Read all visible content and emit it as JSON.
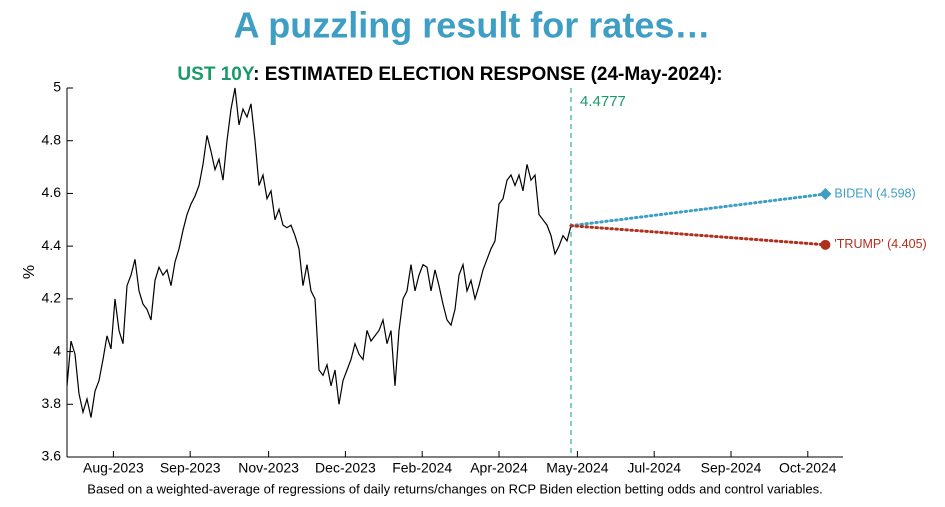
{
  "chart_data": {
    "type": "line",
    "title": "A puzzling result for rates…",
    "subtitle": [
      {
        "text": "UST 10Y",
        "color": "#1a9a6a"
      },
      {
        "text": ": ESTIMATED ELECTION RESPONSE (24-May-2024):",
        "color": "#000000"
      }
    ],
    "ylabel": "%",
    "footnote": "Based on a weighted-average of regressions of daily returns/changes on RCP Biden election betting odds and control variables.",
    "xlim": [
      0,
      485
    ],
    "xticks": [
      {
        "value": 29,
        "label": "Aug-2023"
      },
      {
        "value": 77,
        "label": "Sep-2023"
      },
      {
        "value": 126,
        "label": "Nov-2023"
      },
      {
        "value": 174,
        "label": "Dec-2023"
      },
      {
        "value": 222,
        "label": "Feb-2024"
      },
      {
        "value": 270,
        "label": "Apr-2024"
      },
      {
        "value": 319,
        "label": "May-2024"
      },
      {
        "value": 367,
        "label": "Jul-2024"
      },
      {
        "value": 415,
        "label": "Sep-2024"
      },
      {
        "value": 463,
        "label": "Oct-2024"
      }
    ],
    "ylim": [
      3.6,
      5
    ],
    "yticks": [
      3.6,
      3.8,
      4,
      4.2,
      4.4,
      4.6,
      4.8,
      5
    ],
    "vline": {
      "x": 315,
      "label": "4.4777",
      "color": "#5bbfb0",
      "label_color": "#1a9a6a"
    },
    "series": [
      {
        "color": "#000000",
        "style": "solid",
        "x": [
          0,
          2.5,
          5,
          7.5,
          10,
          12.5,
          15,
          17.5,
          20,
          22.5,
          25,
          27.5,
          30,
          32.5,
          35,
          37.5,
          40,
          42.5,
          45,
          47.5,
          50,
          52.5,
          55,
          57.5,
          60,
          62.5,
          65,
          67.5,
          70,
          72.5,
          75,
          77.5,
          80,
          82.5,
          85,
          87.5,
          90,
          92.5,
          95,
          97.5,
          100,
          102.5,
          105,
          107.5,
          110,
          112.5,
          115,
          117.5,
          120,
          122.5,
          125,
          127.5,
          130,
          132.5,
          135,
          137.5,
          140,
          142.5,
          145,
          147.5,
          150,
          152.5,
          155,
          157.5,
          160,
          162.5,
          165,
          167.5,
          170,
          172.5,
          175,
          177.5,
          180,
          182.5,
          185,
          187.5,
          190,
          192.5,
          195,
          197.5,
          200,
          202.5,
          205,
          207.5,
          210,
          212.5,
          215,
          217.5,
          220,
          222.5,
          225,
          227.5,
          230,
          232.5,
          235,
          237.5,
          240,
          242.5,
          245,
          247.5,
          250,
          252.5,
          255,
          257.5,
          260,
          262.5,
          265,
          267.5,
          270,
          272.5,
          275,
          277.5,
          280,
          282.5,
          285,
          287.5,
          290,
          292.5,
          295,
          297.5,
          300,
          302.5,
          305,
          307.5,
          310,
          312.5,
          315
        ],
        "values": [
          3.87,
          4.04,
          3.99,
          3.84,
          3.77,
          3.82,
          3.75,
          3.85,
          3.89,
          3.97,
          4.06,
          4.01,
          4.2,
          4.08,
          4.03,
          4.25,
          4.29,
          4.35,
          4.23,
          4.18,
          4.16,
          4.12,
          4.27,
          4.32,
          4.29,
          4.31,
          4.25,
          4.34,
          4.39,
          4.46,
          4.52,
          4.56,
          4.59,
          4.63,
          4.71,
          4.82,
          4.76,
          4.69,
          4.73,
          4.65,
          4.8,
          4.92,
          5.0,
          4.86,
          4.92,
          4.89,
          4.94,
          4.8,
          4.63,
          4.67,
          4.58,
          4.61,
          4.5,
          4.54,
          4.48,
          4.47,
          4.48,
          4.44,
          4.39,
          4.25,
          4.33,
          4.23,
          4.2,
          3.93,
          3.91,
          3.95,
          3.87,
          3.93,
          3.8,
          3.89,
          3.93,
          3.97,
          4.03,
          3.99,
          3.97,
          4.08,
          4.04,
          4.06,
          4.08,
          4.12,
          4.03,
          4.08,
          3.87,
          4.08,
          4.2,
          4.23,
          4.33,
          4.23,
          4.29,
          4.33,
          4.32,
          4.23,
          4.31,
          4.25,
          4.18,
          4.12,
          4.1,
          4.16,
          4.29,
          4.33,
          4.23,
          4.27,
          4.2,
          4.25,
          4.31,
          4.35,
          4.39,
          4.42,
          4.56,
          4.58,
          4.65,
          4.67,
          4.63,
          4.67,
          4.61,
          4.71,
          4.65,
          4.67,
          4.52,
          4.5,
          4.48,
          4.44,
          4.37,
          4.4,
          4.44,
          4.42,
          4.4777
        ]
      },
      {
        "label": "BIDEN (4.598)",
        "color": "#3f9ec4",
        "style": "dotted",
        "marker": "diamond",
        "x": [
          315,
          474
        ],
        "values": [
          4.4777,
          4.598
        ]
      },
      {
        "label": "'TRUMP' (4.405)",
        "color": "#b0301e",
        "style": "dotted",
        "marker": "circle",
        "x": [
          315,
          474
        ],
        "values": [
          4.4777,
          4.405
        ]
      }
    ]
  }
}
